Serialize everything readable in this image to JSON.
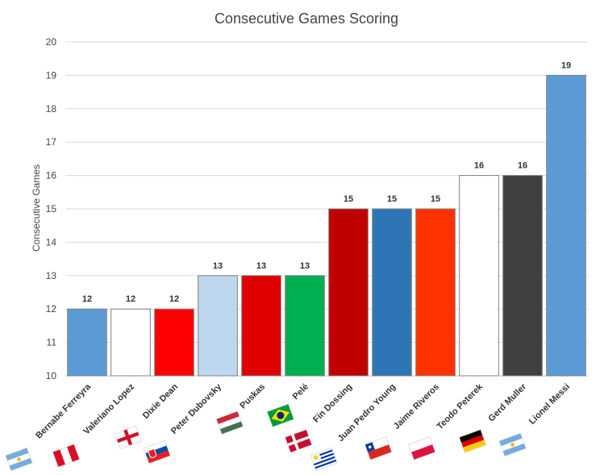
{
  "chart_data": {
    "type": "bar",
    "title": "Consecutive  Games Scoring",
    "ylabel": "Consecutive Games",
    "xlabel": "",
    "ylim": [
      10,
      20
    ],
    "yticks": [
      10,
      11,
      12,
      13,
      14,
      15,
      16,
      17,
      18,
      19,
      20
    ],
    "grid": true,
    "categories": [
      "Bernabe Ferreyra",
      "Valeriano Lopez",
      "Dixie Dean",
      "Peter Dubovsky",
      "Puskas",
      "Pelé",
      "Fin Dossing",
      "Juan Pedro Young",
      "Jaime Riveros",
      "Teodo Peterek",
      "Gerd Muller",
      "Lionel Messi"
    ],
    "values": [
      12,
      12,
      12,
      13,
      13,
      13,
      15,
      15,
      15,
      16,
      16,
      19
    ],
    "bar_colors": [
      "#5b9bd5",
      "#ffffff",
      "#ff0000",
      "#bdd7ee",
      "#e00000",
      "#00b050",
      "#c00000",
      "#2e75b6",
      "#ff3300",
      "#ffffff",
      "#404040",
      "#5b9bd5"
    ],
    "flags": [
      "argentina-flag",
      "peru-flag",
      "england-flag",
      "slovakia-flag",
      "hungary-flag",
      "brazil-flag",
      "denmark-flag",
      "uruguay-flag",
      "chile-flag",
      "poland-flag",
      "germany-flag",
      "argentina-flag"
    ]
  }
}
